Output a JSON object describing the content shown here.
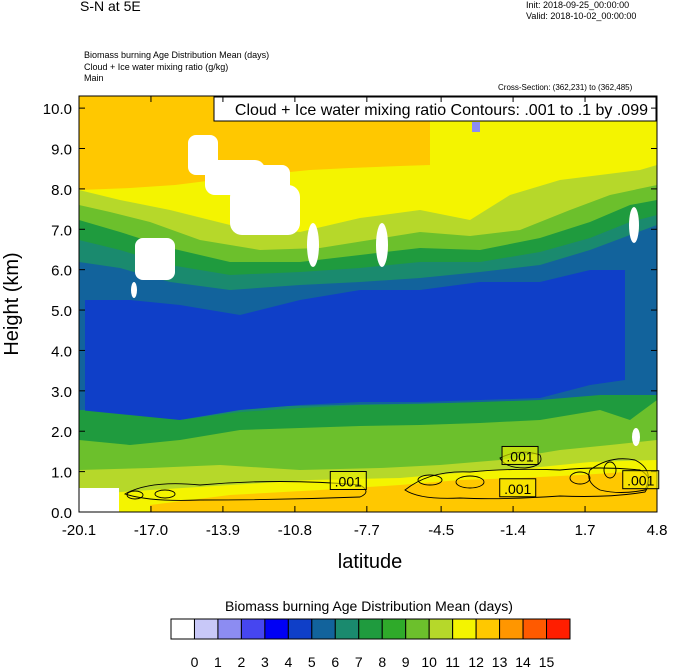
{
  "header": {
    "title": "S-N at 5E",
    "init": "Init: 2018-09-25_00:00:00",
    "valid": "Valid: 2018-10-02_00:00:00",
    "field1": "Biomass burning Age Distribution Mean   (days)",
    "field2": "Cloud + Ice water mixing ratio   (g/kg)",
    "field3": "Main",
    "cross_section": "Cross-Section: (362,231) to (362,485)"
  },
  "chart_data": {
    "type": "heatmap",
    "title": "Cloud + Ice water mixing ratio Contours: .001 to .1 by .099",
    "xlabel": "latitude",
    "ylabel": "Height (km)",
    "xticks": [
      "-20.1",
      "-17.0",
      "-13.9",
      "-10.8",
      "-7.7",
      "-4.5",
      "-1.4",
      "1.7",
      "4.8"
    ],
    "yticks": [
      "0.0",
      "1.0",
      "2.0",
      "3.0",
      "4.0",
      "5.0",
      "6.0",
      "7.0",
      "8.0",
      "9.0",
      "10.0"
    ],
    "xlim": [
      -20.1,
      4.8
    ],
    "ylim": [
      0,
      10.3
    ],
    "colorbar": {
      "title": "Biomass burning Age Distribution Mean  (days)",
      "labels": [
        "0",
        "1",
        "2",
        "3",
        "4",
        "5",
        "6",
        "7",
        "8",
        "9",
        "10",
        "11",
        "12",
        "13",
        "14",
        "15"
      ],
      "colors": [
        "#ffffff",
        "#c8c8f8",
        "#8c8cf2",
        "#4646f0",
        "#0000f5",
        "#0f3fc8",
        "#12639c",
        "#1a8a6e",
        "#1f9b3e",
        "#2faa2a",
        "#6cc02c",
        "#b6d82a",
        "#f4f400",
        "#ffc800",
        "#ff9600",
        "#ff5a00",
        "#ff1e00"
      ]
    },
    "contour_labels": [
      {
        "text": ".001",
        "lat": -8.5,
        "height": 0.78
      },
      {
        "text": ".001",
        "lat": -1.1,
        "height": 1.4
      },
      {
        "text": ".001",
        "lat": -1.2,
        "height": 0.6
      },
      {
        "text": ".001",
        "lat": 4.1,
        "height": 0.8
      }
    ]
  }
}
